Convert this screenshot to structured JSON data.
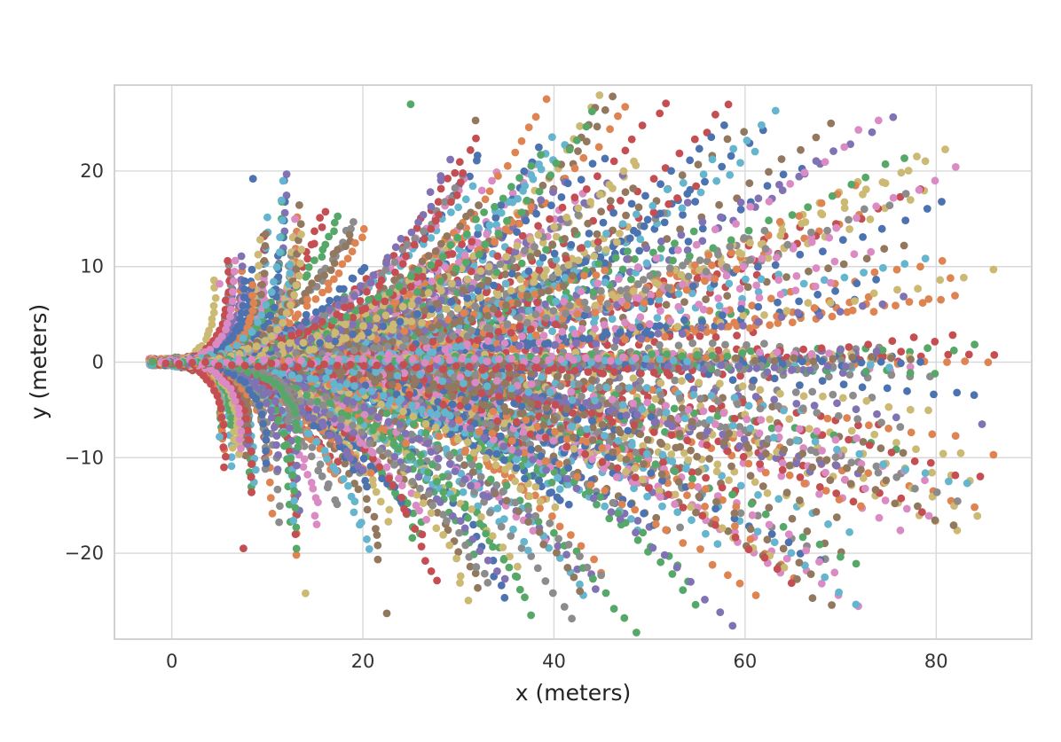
{
  "chart_data": {
    "type": "scatter",
    "title": "",
    "xlabel": "x (meters)",
    "ylabel": "y (meters)",
    "xlim": [
      -6,
      90
    ],
    "ylim": [
      -29,
      29
    ],
    "xticks": [
      0,
      20,
      40,
      60,
      80
    ],
    "yticks": [
      -20,
      -10,
      0,
      10,
      20
    ],
    "xtick_labels": [
      "0",
      "20",
      "40",
      "60",
      "80"
    ],
    "ytick_labels": [
      "−20",
      "−10",
      "0",
      "10",
      "20"
    ],
    "grid": true,
    "legend": "none",
    "colors": [
      "#4c72b0",
      "#dd8452",
      "#55a868",
      "#c44e52",
      "#8172b3",
      "#937860",
      "#da8bc3",
      "#8c8c8c",
      "#ccb974",
      "#64b5cd"
    ],
    "trajectory_fan": {
      "origin": [
        -2,
        0
      ],
      "spread_deg": 58,
      "max_range_m": 88,
      "points_per_trajectory": 38
    },
    "annotated_points": [
      {
        "x": 25.0,
        "y": 27.0
      },
      {
        "x": 22.5,
        "y": -26.3
      },
      {
        "x": 86.0,
        "y": 9.7
      },
      {
        "x": 86.0,
        "y": -9.7
      },
      {
        "x": 54.0,
        "y": 16.7
      },
      {
        "x": 53.2,
        "y": -17.3
      },
      {
        "x": 8.5,
        "y": 19.2
      },
      {
        "x": 7.5,
        "y": -19.5
      },
      {
        "x": 5.0,
        "y": 8.2
      },
      {
        "x": 5.0,
        "y": -7.8
      },
      {
        "x": -2.0,
        "y": 0.0
      },
      {
        "x": 31.8,
        "y": 25.3
      },
      {
        "x": 14.0,
        "y": -24.2
      },
      {
        "x": 81.5,
        "y": 8.8
      },
      {
        "x": 84.8,
        "y": -6.5
      }
    ]
  }
}
